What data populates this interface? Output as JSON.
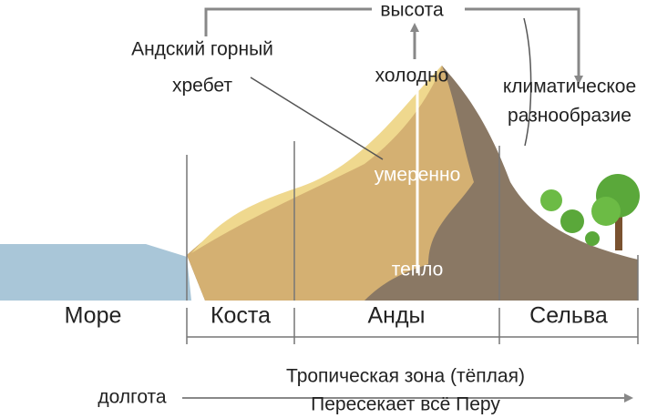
{
  "labels": {
    "height": "высота",
    "ridge": [
      "Андский горный",
      "хребет"
    ],
    "cold": "холодно",
    "diversity": [
      "климатическое",
      "разнообразие"
    ],
    "temperate": "умеренно",
    "warm": "тепло",
    "longitude": "долгота",
    "tropic": [
      "Тропическая зона (тёплая)",
      "Пересекает всё Перу"
    ]
  },
  "zones": [
    "Море",
    "Коста",
    "Анды",
    "Сельва"
  ]
}
